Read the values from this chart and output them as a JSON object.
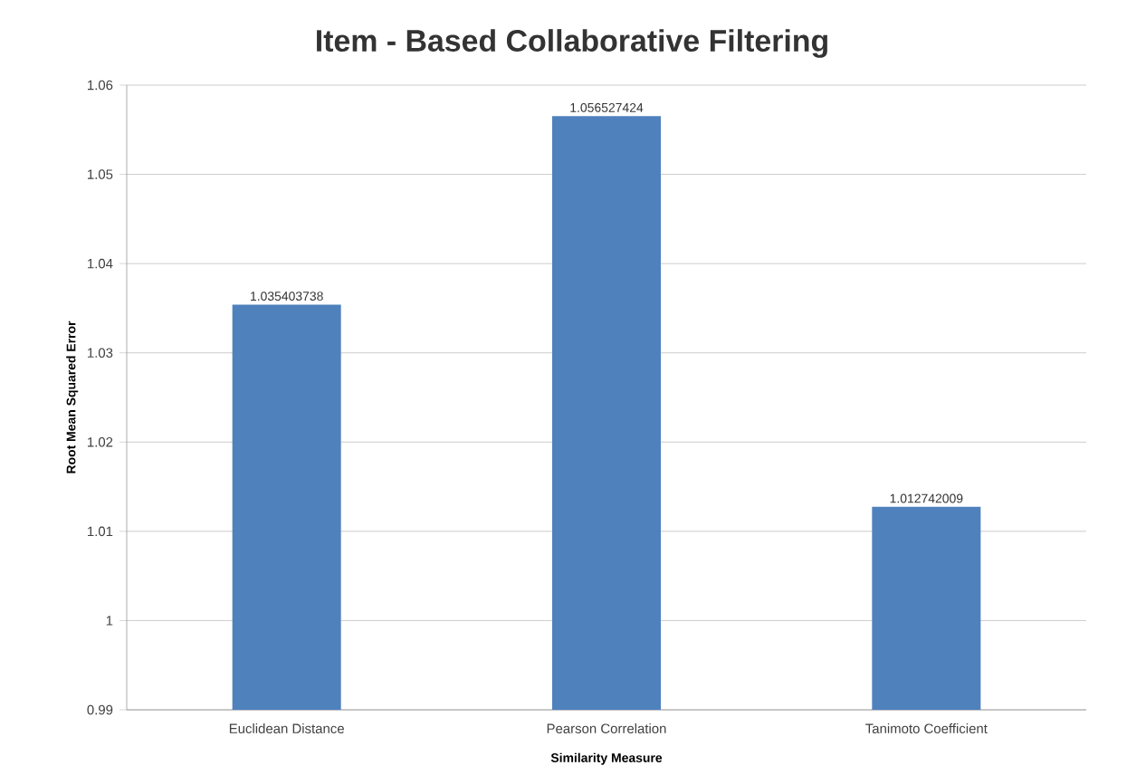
{
  "chart_data": {
    "type": "bar",
    "title": "Item - Based Collaborative Filtering",
    "xlabel": "Similarity Measure",
    "ylabel": "Root Mean Squared Error",
    "categories": [
      "Euclidean Distance",
      "Pearson Correlation",
      "Tanimoto Coefficient"
    ],
    "values": [
      1.035403738,
      1.056527424,
      1.012742009
    ],
    "value_labels": [
      "1.035403738",
      "1.056527424",
      "1.012742009"
    ],
    "color": "#4f81bd",
    "ylim": [
      0.99,
      1.06
    ],
    "yticks": [
      0.99,
      1,
      1.01,
      1.02,
      1.03,
      1.04,
      1.05,
      1.06
    ],
    "grid": "y"
  }
}
